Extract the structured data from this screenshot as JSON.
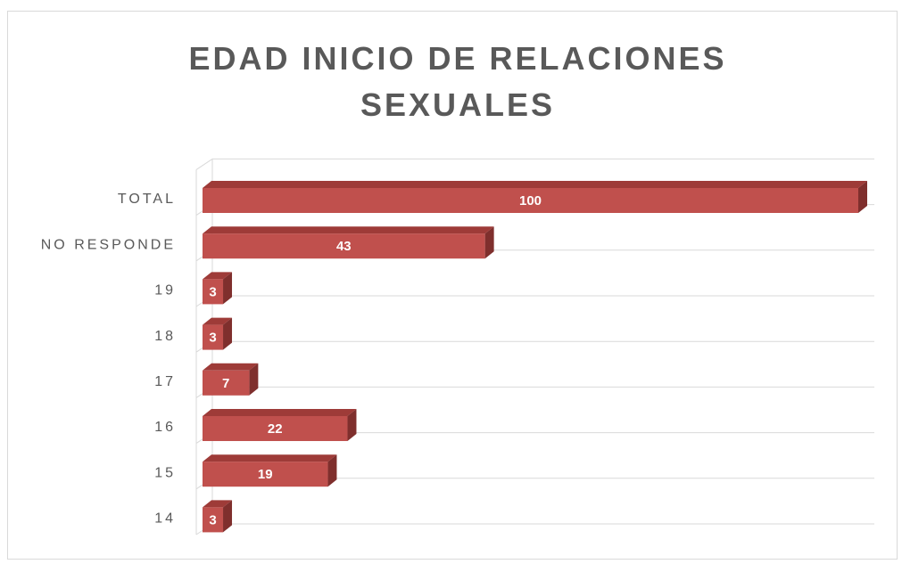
{
  "chart_data": {
    "type": "bar",
    "orientation": "horizontal",
    "title": "EDAD INICIO DE RELACIONES SEXUALES",
    "categories": [
      "14",
      "15",
      "16",
      "17",
      "18",
      "19",
      "NO RESPONDE",
      "TOTAL"
    ],
    "values": [
      3,
      19,
      22,
      7,
      3,
      3,
      43,
      100
    ],
    "color": "#c0504d",
    "xlim": [
      0,
      100
    ],
    "grid": true
  }
}
